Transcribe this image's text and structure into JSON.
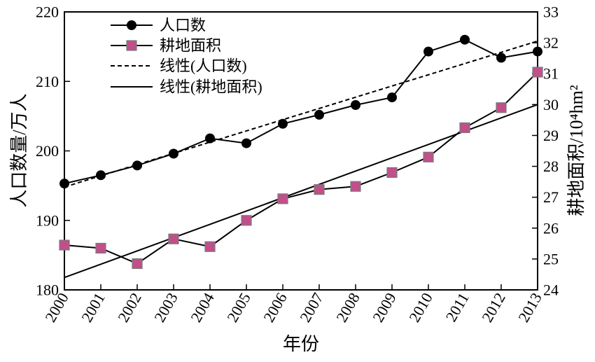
{
  "chart_data": {
    "type": "line",
    "title": "",
    "xlabel": "年份",
    "ylabel_left": "人口数量/万人",
    "ylabel_right": "耕地面积/10⁴hm²",
    "x": [
      "2000",
      "2001",
      "2002",
      "2003",
      "2004",
      "2005",
      "2006",
      "2007",
      "2008",
      "2009",
      "2010",
      "2011",
      "2012",
      "2013"
    ],
    "ylim_left": [
      180,
      220
    ],
    "yticks_left": [
      "180",
      "190",
      "200",
      "210",
      "220"
    ],
    "ylim_right": [
      24,
      33
    ],
    "yticks_right": [
      "24",
      "25",
      "26",
      "27",
      "28",
      "29",
      "30",
      "31",
      "32",
      "33"
    ],
    "grid": false,
    "legend_position": "top-left",
    "series": [
      {
        "name": "人口数",
        "axis": "left",
        "marker": "circle",
        "color": "#000000",
        "values": [
          195.3,
          196.5,
          197.9,
          199.6,
          201.8,
          201.1,
          203.9,
          205.2,
          206.6,
          207.7,
          214.3,
          216.0,
          213.4,
          214.3
        ]
      },
      {
        "name": "耕地面积",
        "axis": "right",
        "marker": "square",
        "color": "#c0508a",
        "values": [
          25.45,
          25.35,
          24.85,
          25.65,
          25.4,
          26.25,
          26.95,
          27.25,
          27.35,
          27.8,
          28.3,
          29.25,
          29.9,
          31.05
        ]
      },
      {
        "name": "线性(人口数)",
        "axis": "left",
        "style": "dashed",
        "color": "#000000",
        "endpoints": [
          [
            2000,
            194.8
          ],
          [
            2013,
            215.8
          ]
        ]
      },
      {
        "name": "线性(耕地面积)",
        "axis": "right",
        "style": "solid",
        "color": "#000000",
        "endpoints": [
          [
            2000,
            24.4
          ],
          [
            2013,
            30.0
          ]
        ]
      }
    ]
  }
}
